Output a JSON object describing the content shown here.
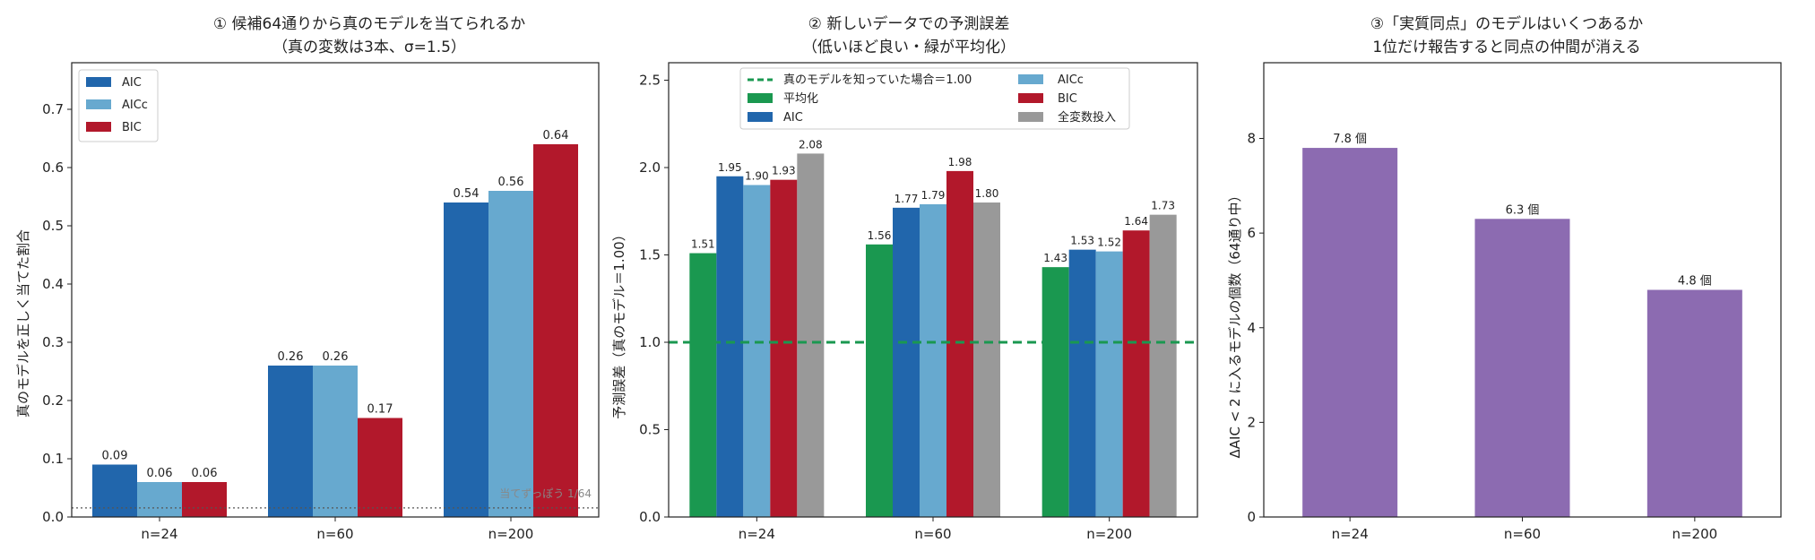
{
  "chart_data": [
    {
      "type": "bar",
      "title": "① 候補64通りから真のモデルを当てられるか",
      "subtitle": "（真の変数は3本、σ=1.5）",
      "xlabel": "",
      "ylabel": "真のモデルを正しく当てた割合",
      "categories": [
        "n=24",
        "n=60",
        "n=200"
      ],
      "ylim": [
        0,
        0.78
      ],
      "yticks": [
        "0.0",
        "0.1",
        "0.2",
        "0.3",
        "0.4",
        "0.5",
        "0.6",
        "0.7"
      ],
      "legend_position": "top-left",
      "series": [
        {
          "name": "AIC",
          "color": "#2166ac",
          "values": [
            0.09,
            0.26,
            0.54
          ],
          "labels": [
            "0.09",
            "0.26",
            "0.54"
          ]
        },
        {
          "name": "AICc",
          "color": "#67a9cf",
          "values": [
            0.06,
            0.26,
            0.56
          ],
          "labels": [
            "0.06",
            "0.26",
            "0.56"
          ]
        },
        {
          "name": "BIC",
          "color": "#b2182b",
          "values": [
            0.06,
            0.17,
            0.64
          ],
          "labels": [
            "0.06",
            "0.17",
            "0.64"
          ]
        }
      ],
      "reference_line": {
        "value": 0.015625,
        "label": "当てずっぽう 1/64",
        "style": "dotted",
        "color": "#555555"
      }
    },
    {
      "type": "bar",
      "title": "② 新しいデータでの予測誤差",
      "subtitle": "（低いほど良い・緑が平均化）",
      "xlabel": "",
      "ylabel": "予測誤差（真のモデル＝1.00）",
      "categories": [
        "n=24",
        "n=60",
        "n=200"
      ],
      "ylim": [
        0,
        2.6
      ],
      "yticks": [
        "0.0",
        "0.5",
        "1.0",
        "1.5",
        "2.0",
        "2.5"
      ],
      "legend_position": "top-center",
      "reference_line": {
        "value": 1.0,
        "label": "真のモデルを知っていた場合＝1.00",
        "style": "dashed",
        "color": "#1a9850"
      },
      "series": [
        {
          "name": "平均化",
          "color": "#1a9850",
          "values": [
            1.51,
            1.56,
            1.43
          ],
          "labels": [
            "1.51",
            "1.56",
            "1.43"
          ]
        },
        {
          "name": "AIC",
          "color": "#2166ac",
          "values": [
            1.95,
            1.77,
            1.53
          ],
          "labels": [
            "1.95",
            "1.77",
            "1.53"
          ]
        },
        {
          "name": "AICc",
          "color": "#67a9cf",
          "values": [
            1.9,
            1.79,
            1.52
          ],
          "labels": [
            "1.90",
            "1.79",
            "1.52"
          ]
        },
        {
          "name": "BIC",
          "color": "#b2182b",
          "values": [
            1.93,
            1.98,
            1.64
          ],
          "labels": [
            "1.93",
            "1.98",
            "1.64"
          ]
        },
        {
          "name": "全変数投入",
          "color": "#999999",
          "values": [
            2.08,
            1.8,
            1.73
          ],
          "labels": [
            "2.08",
            "1.80",
            "1.73"
          ]
        }
      ]
    },
    {
      "type": "bar",
      "title": "③「実質同点」のモデルはいくつあるか",
      "subtitle": "1位だけ報告すると同点の仲間が消える",
      "xlabel": "",
      "ylabel": "ΔAIC < 2 に入るモデルの個数（64通り中）",
      "categories": [
        "n=24",
        "n=60",
        "n=200"
      ],
      "ylim": [
        0,
        9.6
      ],
      "yticks": [
        "0",
        "2",
        "4",
        "6",
        "8"
      ],
      "series": [
        {
          "color": "#8c6bb1",
          "values": [
            7.8,
            6.3,
            4.8
          ],
          "labels": [
            "7.8 個",
            "6.3 個",
            "4.8 個"
          ]
        }
      ]
    }
  ]
}
